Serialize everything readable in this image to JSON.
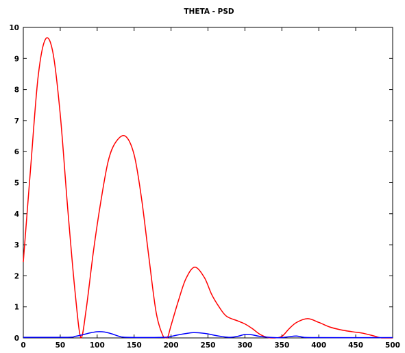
{
  "chart_data": {
    "type": "line",
    "title": "THETA - PSD",
    "xlabel": "",
    "ylabel": "",
    "xlim": [
      0,
      500
    ],
    "ylim": [
      0,
      10
    ],
    "xticks": [
      0,
      50,
      100,
      150,
      200,
      250,
      300,
      350,
      400,
      450,
      500
    ],
    "yticks": [
      0,
      1,
      2,
      3,
      4,
      5,
      6,
      7,
      8,
      9,
      10
    ],
    "grid": false,
    "series": [
      {
        "color": "#ff0000",
        "x": [
          0,
          10,
          20,
          30,
          40,
          50,
          60,
          70,
          78,
          85,
          95,
          105,
          115,
          125,
          138,
          150,
          160,
          170,
          180,
          190,
          195,
          200,
          210,
          220,
          232,
          245,
          255,
          265,
          275,
          290,
          300,
          310,
          320,
          330,
          340,
          350,
          360,
          370,
          385,
          400,
          415,
          430,
          445,
          460,
          475,
          485,
          500
        ],
        "values": [
          2.45,
          5.5,
          8.4,
          9.62,
          9.2,
          7.2,
          4.2,
          1.5,
          0.0,
          0.9,
          2.8,
          4.4,
          5.7,
          6.3,
          6.5,
          5.9,
          4.5,
          2.6,
          0.8,
          0.02,
          0.0,
          0.4,
          1.2,
          1.9,
          2.28,
          1.95,
          1.4,
          1.0,
          0.7,
          0.55,
          0.45,
          0.3,
          0.12,
          0.02,
          0.0,
          0.05,
          0.3,
          0.5,
          0.62,
          0.5,
          0.35,
          0.26,
          0.2,
          0.15,
          0.06,
          0.0,
          0.0
        ]
      },
      {
        "color": "#0000ff",
        "x": [
          0,
          60,
          70,
          80,
          90,
          100,
          110,
          120,
          130,
          140,
          190,
          200,
          210,
          220,
          230,
          240,
          250,
          260,
          270,
          280,
          290,
          300,
          310,
          320,
          340,
          350,
          360,
          370,
          380,
          400,
          500
        ],
        "values": [
          0.02,
          0.02,
          0.05,
          0.1,
          0.16,
          0.2,
          0.19,
          0.13,
          0.05,
          0.02,
          0.02,
          0.05,
          0.1,
          0.14,
          0.17,
          0.16,
          0.13,
          0.08,
          0.04,
          0.02,
          0.05,
          0.11,
          0.1,
          0.05,
          0.01,
          0.01,
          0.04,
          0.06,
          0.02,
          0.01,
          0.01
        ]
      }
    ]
  }
}
